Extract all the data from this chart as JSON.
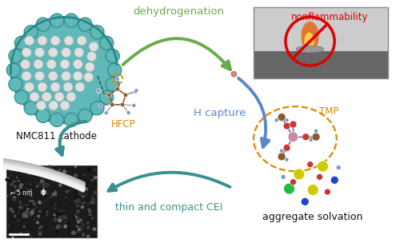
{
  "background_color": "#ffffff",
  "labels": {
    "nmc": "NMC811 cathode",
    "hfcp": "HFCP",
    "dehydrogenation": "dehydrogenation",
    "nonflammability": "nonflammability",
    "h_capture": "H capture",
    "tmp": "TMP",
    "thin_cei": "thin and compact CEI",
    "aggregate": "aggregate solvation"
  },
  "colors": {
    "green_arrow": "#6aaa4a",
    "teal_arrow": "#3a9090",
    "blue_arrow": "#5a88cc",
    "red": "#dd0000",
    "orange": "#dd8800",
    "black": "#111111",
    "teal_text": "#3a9090",
    "blue_text": "#5a88cc",
    "nmc_teal": "#60b8b8",
    "nmc_teal_dark": "#2a8888",
    "nmc_gray_light": "#e0e0e0",
    "nmc_gray_dark": "#b0b0b0",
    "hfcp_brown": "#8b5a2b",
    "hfcp_blue": "#7799cc",
    "photo_bg_top": "#d8d8d8",
    "photo_bg_bot": "#707070",
    "flame_orange": "#cc6622",
    "flame_yellow": "#ffaa22",
    "s_yellow": "#cccc00",
    "n_blue": "#2244cc",
    "li_green": "#22bb44",
    "o_red": "#cc3333",
    "p_pink": "#cc88aa",
    "c_brown": "#8b5a2b"
  },
  "figsize": [
    5.0,
    3.14
  ],
  "dpi": 100
}
